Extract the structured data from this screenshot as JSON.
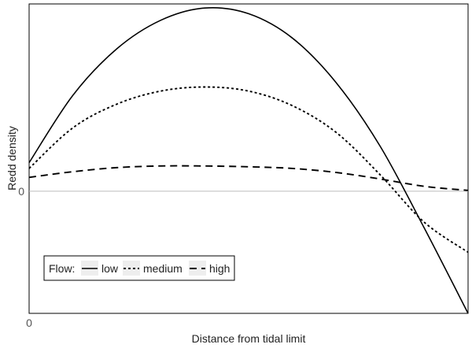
{
  "chart_data": {
    "type": "line",
    "title": "",
    "xlabel": "Distance from tidal limit",
    "ylabel": "Redd density",
    "x_ticks": [
      "0"
    ],
    "y_ticks": [
      "0"
    ],
    "xlim": [
      0,
      1
    ],
    "ylim": [
      -1.5,
      2.3
    ],
    "zero_line": true,
    "legend": {
      "title": "Flow:",
      "placement": "bottom-left"
    },
    "series": [
      {
        "name": "low",
        "style": "solid",
        "x": [
          0,
          0.1,
          0.2,
          0.3,
          0.4,
          0.5,
          0.6,
          0.7,
          0.8,
          0.9,
          1.0
        ],
        "y": [
          0.35,
          1.18,
          1.75,
          2.1,
          2.25,
          2.18,
          1.88,
          1.33,
          0.55,
          -0.45,
          -1.5
        ]
      },
      {
        "name": "medium",
        "style": "dotted",
        "x": [
          0,
          0.1,
          0.2,
          0.3,
          0.4,
          0.5,
          0.6,
          0.7,
          0.8,
          0.9,
          1.0
        ],
        "y": [
          0.28,
          0.78,
          1.07,
          1.23,
          1.28,
          1.23,
          1.05,
          0.72,
          0.2,
          -0.38,
          -0.75
        ]
      },
      {
        "name": "high",
        "style": "dashed",
        "x": [
          0,
          0.1,
          0.2,
          0.3,
          0.4,
          0.5,
          0.6,
          0.7,
          0.8,
          0.9,
          1.0
        ],
        "y": [
          0.17,
          0.24,
          0.29,
          0.31,
          0.31,
          0.3,
          0.28,
          0.23,
          0.15,
          0.06,
          0.01
        ]
      }
    ],
    "colors": {
      "lines": "#000000",
      "zero_line": "#bbbbbb",
      "frame": "#000000"
    }
  }
}
